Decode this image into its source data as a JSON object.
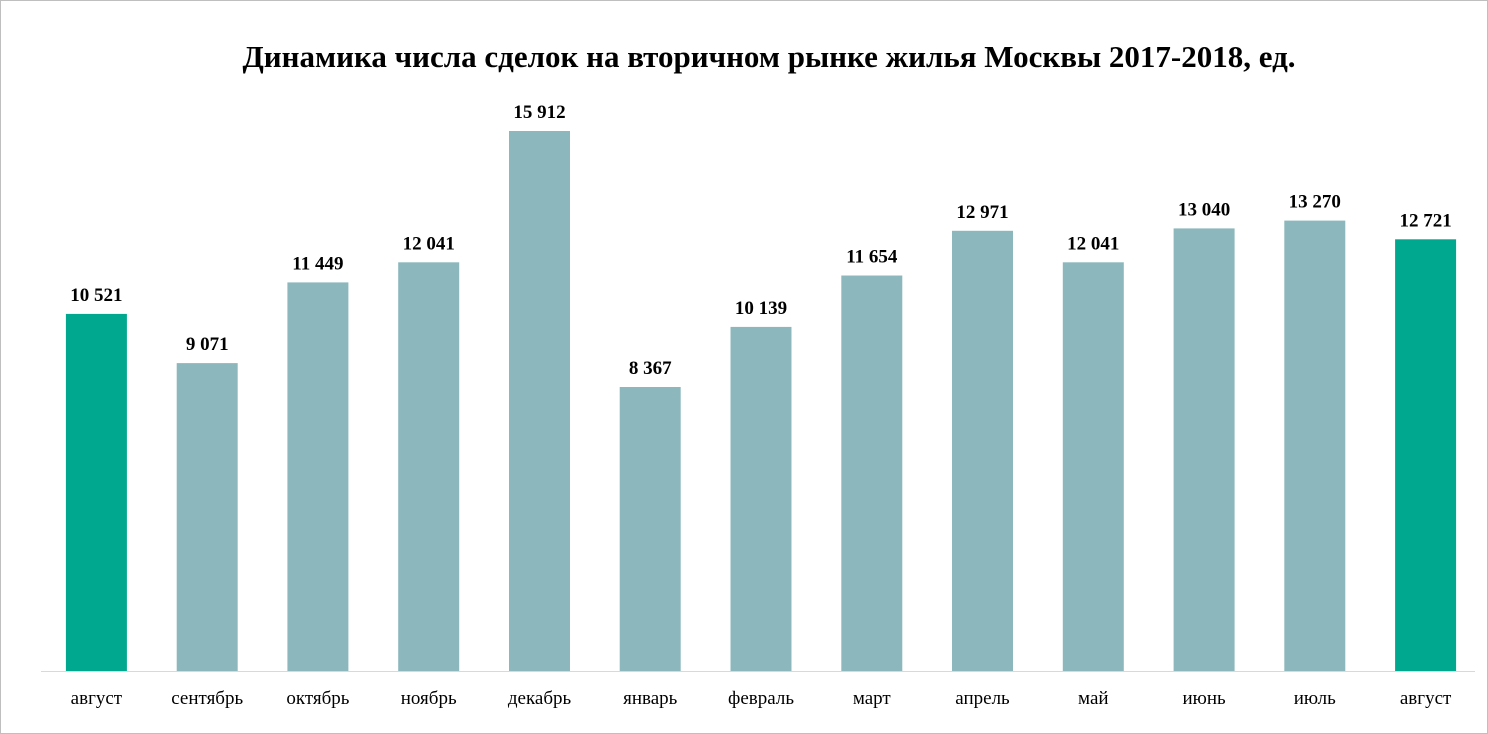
{
  "chart_data": {
    "type": "bar",
    "title": "Динамика числа сделок на вторичном рынке жилья Москвы 2017-2018, ед.",
    "xlabel": "",
    "ylabel": "",
    "ylim": [
      0,
      16500
    ],
    "grid": false,
    "legend": "none",
    "categories": [
      "август",
      "сентябрь",
      "октябрь",
      "ноябрь",
      "декабрь",
      "январь",
      "февраль",
      "март",
      "апрель",
      "май",
      "июнь",
      "июль",
      "август"
    ],
    "values": [
      10521,
      9071,
      11449,
      12041,
      15912,
      8367,
      10139,
      11654,
      12971,
      12041,
      13040,
      13270,
      12721
    ],
    "value_labels": [
      "10 521",
      "9 071",
      "11 449",
      "12 041",
      "15 912",
      "8 367",
      "10 139",
      "11 654",
      "12 971",
      "12 041",
      "13 040",
      "13 270",
      "12 721"
    ],
    "highlighted": [
      true,
      false,
      false,
      false,
      false,
      false,
      false,
      false,
      false,
      false,
      false,
      false,
      true
    ],
    "colors": {
      "bar": "#8cb8bd",
      "highlight": "#00a88f",
      "axis": "#d9d9d9"
    }
  }
}
